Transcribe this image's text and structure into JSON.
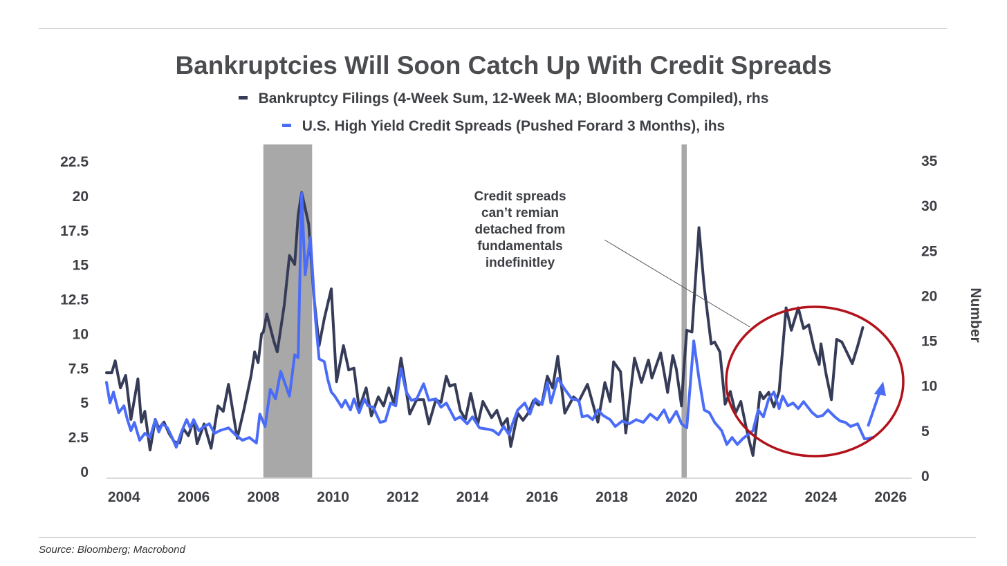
{
  "chart_data": {
    "type": "line",
    "title": "Bankruptcies Will Soon Catch Up With Credit Spreads",
    "legend": [
      {
        "label": "Bankruptcy Filings (4-Week Sum, 12-Week MA; Bloomberg Compiled), rhs",
        "color": "#363c57"
      },
      {
        "label": "U.S. High Yield Credit Spreads (Pushed Forard 3 Months), ihs",
        "color": "#4a6cf7"
      }
    ],
    "x_ticks": [
      "2004",
      "2006",
      "2008",
      "2010",
      "2012",
      "2014",
      "2016",
      "2018",
      "2020",
      "2022",
      "2024",
      "2026"
    ],
    "x_range": [
      2003.5,
      2026.6
    ],
    "left_axis": {
      "ticks": [
        "0",
        "2.5",
        "5",
        "7.5",
        "10",
        "12.5",
        "15",
        "17.5",
        "20",
        "22.5"
      ],
      "range": [
        0,
        22.5
      ]
    },
    "right_axis": {
      "ticks": [
        "0",
        "5",
        "10",
        "15",
        "20",
        "25",
        "30",
        "35"
      ],
      "range": [
        0,
        35
      ],
      "label": "Number"
    },
    "recessions": [
      [
        2008.0,
        2009.4
      ],
      [
        2020.0,
        2020.15
      ]
    ],
    "series": [
      {
        "name": "Bankruptcy Filings (4-Week Sum, 12-Week MA; Bloomberg Compiled), rhs",
        "axis": "right",
        "color": "#363c57",
        "points": [
          [
            2003.5,
            11.5
          ],
          [
            2003.65,
            11.5
          ],
          [
            2003.75,
            12.8
          ],
          [
            2003.9,
            9.8
          ],
          [
            2004.05,
            11.2
          ],
          [
            2004.2,
            6.3
          ],
          [
            2004.4,
            10.8
          ],
          [
            2004.5,
            6.0
          ],
          [
            2004.6,
            7.2
          ],
          [
            2004.75,
            2.9
          ],
          [
            2004.9,
            6.3
          ],
          [
            2005.0,
            5.3
          ],
          [
            2005.15,
            6.0
          ],
          [
            2005.3,
            4.7
          ],
          [
            2005.45,
            3.8
          ],
          [
            2005.6,
            3.7
          ],
          [
            2005.7,
            5.3
          ],
          [
            2005.85,
            4.5
          ],
          [
            2006.0,
            6.2
          ],
          [
            2006.1,
            3.6
          ],
          [
            2006.3,
            5.8
          ],
          [
            2006.5,
            3.1
          ],
          [
            2006.7,
            7.8
          ],
          [
            2006.85,
            7.2
          ],
          [
            2007.0,
            10.2
          ],
          [
            2007.25,
            4.2
          ],
          [
            2007.45,
            7.5
          ],
          [
            2007.65,
            11.2
          ],
          [
            2007.75,
            13.8
          ],
          [
            2007.85,
            12.6
          ],
          [
            2007.95,
            15.8
          ],
          [
            2008.0,
            16.0
          ],
          [
            2008.1,
            18.0
          ],
          [
            2008.3,
            15.0
          ],
          [
            2008.4,
            13.8
          ],
          [
            2008.6,
            19.0
          ],
          [
            2008.75,
            24.5
          ],
          [
            2008.9,
            23.5
          ],
          [
            2009.0,
            29.0
          ],
          [
            2009.1,
            31.5
          ],
          [
            2009.3,
            28.0
          ],
          [
            2009.45,
            20.0
          ],
          [
            2009.6,
            14.5
          ],
          [
            2009.75,
            17.5
          ],
          [
            2009.95,
            20.8
          ],
          [
            2010.1,
            10.5
          ],
          [
            2010.3,
            14.5
          ],
          [
            2010.45,
            11.8
          ],
          [
            2010.6,
            12.0
          ],
          [
            2010.75,
            7.5
          ],
          [
            2010.95,
            9.8
          ],
          [
            2011.1,
            6.7
          ],
          [
            2011.3,
            8.8
          ],
          [
            2011.45,
            7.8
          ],
          [
            2011.6,
            9.8
          ],
          [
            2011.75,
            8.0
          ],
          [
            2011.95,
            13.1
          ],
          [
            2012.1,
            9.5
          ],
          [
            2012.2,
            6.9
          ],
          [
            2012.4,
            8.5
          ],
          [
            2012.6,
            8.5
          ],
          [
            2012.75,
            5.8
          ],
          [
            2012.95,
            8.5
          ],
          [
            2013.1,
            8.2
          ],
          [
            2013.25,
            11.1
          ],
          [
            2013.35,
            10.0
          ],
          [
            2013.5,
            10.2
          ],
          [
            2013.65,
            7.3
          ],
          [
            2013.8,
            6.3
          ],
          [
            2013.95,
            9.2
          ],
          [
            2014.15,
            5.7
          ],
          [
            2014.3,
            8.3
          ],
          [
            2014.55,
            6.5
          ],
          [
            2014.7,
            7.3
          ],
          [
            2014.85,
            5.6
          ],
          [
            2015.0,
            6.4
          ],
          [
            2015.1,
            3.3
          ],
          [
            2015.3,
            7.0
          ],
          [
            2015.45,
            6.2
          ],
          [
            2015.6,
            7.0
          ],
          [
            2015.75,
            8.4
          ],
          [
            2015.9,
            7.9
          ],
          [
            2016.0,
            8.2
          ],
          [
            2016.15,
            11.1
          ],
          [
            2016.3,
            9.8
          ],
          [
            2016.45,
            13.3
          ],
          [
            2016.65,
            7.0
          ],
          [
            2016.9,
            8.8
          ],
          [
            2017.05,
            8.3
          ],
          [
            2017.3,
            10.2
          ],
          [
            2017.6,
            6.0
          ],
          [
            2017.8,
            10.4
          ],
          [
            2017.95,
            8.3
          ],
          [
            2018.05,
            12.7
          ],
          [
            2018.25,
            11.6
          ],
          [
            2018.4,
            4.8
          ],
          [
            2018.65,
            13.1
          ],
          [
            2018.85,
            10.4
          ],
          [
            2019.05,
            12.9
          ],
          [
            2019.15,
            10.9
          ],
          [
            2019.4,
            13.7
          ],
          [
            2019.6,
            9.3
          ],
          [
            2019.75,
            13.4
          ],
          [
            2019.85,
            11.9
          ],
          [
            2020.0,
            7.8
          ],
          [
            2020.05,
            11.0
          ],
          [
            2020.15,
            16.2
          ],
          [
            2020.3,
            16.0
          ],
          [
            2020.5,
            27.6
          ],
          [
            2020.65,
            21.0
          ],
          [
            2020.85,
            14.7
          ],
          [
            2020.95,
            14.9
          ],
          [
            2021.1,
            13.8
          ],
          [
            2021.25,
            8.0
          ],
          [
            2021.4,
            9.4
          ],
          [
            2021.55,
            7.0
          ],
          [
            2021.7,
            8.3
          ],
          [
            2021.85,
            5.5
          ],
          [
            2021.95,
            3.8
          ],
          [
            2022.05,
            2.3
          ],
          [
            2022.15,
            5.5
          ],
          [
            2022.25,
            9.3
          ],
          [
            2022.35,
            8.6
          ],
          [
            2022.5,
            9.3
          ],
          [
            2022.65,
            7.7
          ],
          [
            2022.8,
            9.4
          ],
          [
            2023.0,
            18.7
          ],
          [
            2023.15,
            16.2
          ],
          [
            2023.35,
            18.7
          ],
          [
            2023.5,
            16.4
          ],
          [
            2023.65,
            16.8
          ],
          [
            2023.8,
            14.2
          ],
          [
            2023.95,
            12.4
          ],
          [
            2024.0,
            14.7
          ],
          [
            2024.15,
            11.3
          ],
          [
            2024.3,
            8.5
          ],
          [
            2024.45,
            15.2
          ],
          [
            2024.6,
            14.9
          ],
          [
            2024.75,
            13.7
          ],
          [
            2024.9,
            12.5
          ],
          [
            2025.05,
            14.4
          ],
          [
            2025.2,
            16.5
          ]
        ]
      },
      {
        "name": "U.S. High Yield Credit Spreads (Pushed Forard 3 Months), ihs",
        "axis": "left",
        "color": "#4a6cf7",
        "points": [
          [
            2003.5,
            6.5
          ],
          [
            2003.6,
            5.0
          ],
          [
            2003.7,
            5.8
          ],
          [
            2003.85,
            4.3
          ],
          [
            2004.0,
            4.8
          ],
          [
            2004.1,
            3.8
          ],
          [
            2004.2,
            3.0
          ],
          [
            2004.3,
            3.6
          ],
          [
            2004.45,
            2.3
          ],
          [
            2004.6,
            2.8
          ],
          [
            2004.75,
            2.5
          ],
          [
            2004.9,
            3.8
          ],
          [
            2005.0,
            2.9
          ],
          [
            2005.1,
            3.5
          ],
          [
            2005.25,
            3.2
          ],
          [
            2005.4,
            2.4
          ],
          [
            2005.5,
            1.8
          ],
          [
            2005.65,
            2.9
          ],
          [
            2005.8,
            3.8
          ],
          [
            2005.9,
            3.2
          ],
          [
            2006.0,
            3.8
          ],
          [
            2006.15,
            3.0
          ],
          [
            2006.3,
            3.3
          ],
          [
            2006.45,
            3.5
          ],
          [
            2006.6,
            2.8
          ],
          [
            2006.75,
            3.0
          ],
          [
            2007.0,
            3.2
          ],
          [
            2007.2,
            2.7
          ],
          [
            2007.4,
            2.3
          ],
          [
            2007.6,
            2.5
          ],
          [
            2007.8,
            2.1
          ],
          [
            2007.9,
            4.2
          ],
          [
            2008.05,
            3.3
          ],
          [
            2008.2,
            6.0
          ],
          [
            2008.35,
            5.3
          ],
          [
            2008.5,
            7.3
          ],
          [
            2008.75,
            5.5
          ],
          [
            2008.9,
            8.5
          ],
          [
            2009.0,
            8.3
          ],
          [
            2009.1,
            20.2
          ],
          [
            2009.2,
            14.3
          ],
          [
            2009.35,
            17.0
          ],
          [
            2009.5,
            11.0
          ],
          [
            2009.6,
            8.2
          ],
          [
            2009.75,
            8.0
          ],
          [
            2009.85,
            6.7
          ],
          [
            2009.95,
            5.8
          ],
          [
            2010.05,
            5.5
          ],
          [
            2010.25,
            4.7
          ],
          [
            2010.35,
            5.2
          ],
          [
            2010.5,
            4.5
          ],
          [
            2010.6,
            5.3
          ],
          [
            2010.75,
            4.3
          ],
          [
            2010.9,
            5.3
          ],
          [
            2011.0,
            4.8
          ],
          [
            2011.15,
            4.7
          ],
          [
            2011.35,
            3.6
          ],
          [
            2011.5,
            3.7
          ],
          [
            2011.65,
            5.0
          ],
          [
            2011.8,
            4.8
          ],
          [
            2011.95,
            7.5
          ],
          [
            2012.1,
            5.8
          ],
          [
            2012.25,
            5.2
          ],
          [
            2012.4,
            5.3
          ],
          [
            2012.6,
            6.4
          ],
          [
            2012.75,
            5.2
          ],
          [
            2012.95,
            5.3
          ],
          [
            2013.1,
            4.7
          ],
          [
            2013.25,
            5.0
          ],
          [
            2013.5,
            3.8
          ],
          [
            2013.65,
            4.0
          ],
          [
            2013.85,
            3.5
          ],
          [
            2014.0,
            4.0
          ],
          [
            2014.2,
            3.2
          ],
          [
            2014.45,
            3.1
          ],
          [
            2014.6,
            3.0
          ],
          [
            2014.75,
            2.7
          ],
          [
            2014.9,
            3.3
          ],
          [
            2015.05,
            2.7
          ],
          [
            2015.15,
            3.5
          ],
          [
            2015.3,
            4.5
          ],
          [
            2015.5,
            5.0
          ],
          [
            2015.65,
            4.2
          ],
          [
            2015.8,
            5.3
          ],
          [
            2016.0,
            4.9
          ],
          [
            2016.15,
            6.5
          ],
          [
            2016.25,
            5.0
          ],
          [
            2016.45,
            6.8
          ],
          [
            2016.65,
            6.0
          ],
          [
            2016.85,
            5.3
          ],
          [
            2017.05,
            5.2
          ],
          [
            2017.15,
            4.0
          ],
          [
            2017.3,
            4.1
          ],
          [
            2017.45,
            3.8
          ],
          [
            2017.6,
            4.5
          ],
          [
            2017.75,
            4.1
          ],
          [
            2017.95,
            3.8
          ],
          [
            2018.1,
            3.3
          ],
          [
            2018.3,
            3.7
          ],
          [
            2018.5,
            3.5
          ],
          [
            2018.7,
            3.8
          ],
          [
            2018.9,
            3.6
          ],
          [
            2019.1,
            4.2
          ],
          [
            2019.3,
            3.8
          ],
          [
            2019.5,
            4.5
          ],
          [
            2019.65,
            3.6
          ],
          [
            2019.85,
            4.4
          ],
          [
            2020.0,
            3.5
          ],
          [
            2020.15,
            3.2
          ],
          [
            2020.35,
            9.5
          ],
          [
            2020.5,
            6.8
          ],
          [
            2020.65,
            4.5
          ],
          [
            2020.8,
            4.3
          ],
          [
            2020.95,
            3.6
          ],
          [
            2021.15,
            3.0
          ],
          [
            2021.3,
            2.0
          ],
          [
            2021.45,
            2.5
          ],
          [
            2021.6,
            2.0
          ],
          [
            2021.75,
            2.4
          ],
          [
            2021.9,
            2.7
          ],
          [
            2022.05,
            3.0
          ],
          [
            2022.2,
            4.5
          ],
          [
            2022.35,
            4.0
          ],
          [
            2022.5,
            5.3
          ],
          [
            2022.65,
            5.8
          ],
          [
            2022.8,
            4.6
          ],
          [
            2022.9,
            5.5
          ],
          [
            2023.05,
            4.8
          ],
          [
            2023.2,
            5.0
          ],
          [
            2023.35,
            4.6
          ],
          [
            2023.5,
            5.1
          ],
          [
            2023.75,
            4.3
          ],
          [
            2023.9,
            4.0
          ],
          [
            2024.05,
            4.1
          ],
          [
            2024.2,
            4.5
          ],
          [
            2024.4,
            4.0
          ],
          [
            2024.55,
            3.7
          ],
          [
            2024.7,
            3.6
          ],
          [
            2024.85,
            3.3
          ],
          [
            2025.05,
            3.5
          ],
          [
            2025.25,
            2.4
          ],
          [
            2025.5,
            2.5
          ]
        ]
      }
    ],
    "annotation": {
      "lines": [
        "Credit spreads",
        "can’t remian",
        "detached from",
        "fundamentals",
        "indefinitley"
      ]
    },
    "source": "Source: Bloomberg; Macrobond"
  }
}
